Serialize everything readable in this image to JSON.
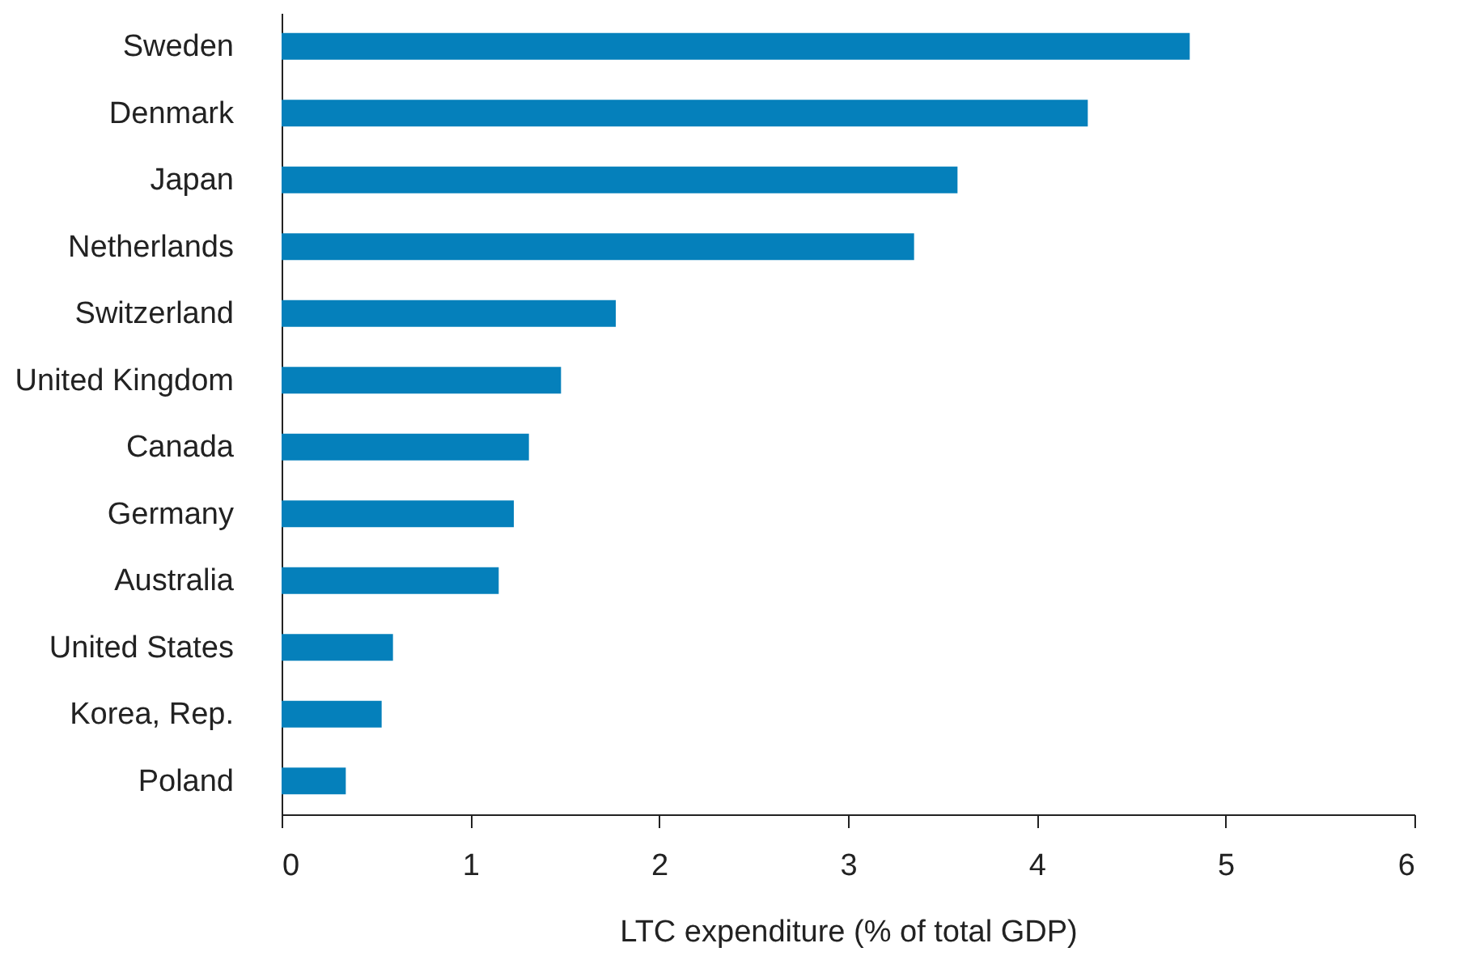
{
  "chart_data": {
    "type": "bar",
    "orientation": "horizontal",
    "xlabel": "LTC expenditure (% of total GDP)",
    "categories": [
      "Sweden",
      "Denmark",
      "Japan",
      "Netherlands",
      "Switzerland",
      "United Kingdom",
      "Canada",
      "Germany",
      "Australia",
      "United States",
      "Korea, Rep.",
      "Poland"
    ],
    "values": [
      4.81,
      4.27,
      3.58,
      3.35,
      1.77,
      1.48,
      1.31,
      1.23,
      1.15,
      0.59,
      0.53,
      0.34
    ],
    "color": "#0580bb",
    "xlim": [
      0,
      6
    ],
    "xticks": [
      0,
      1,
      2,
      3,
      4,
      5,
      6
    ],
    "grid": false
  }
}
